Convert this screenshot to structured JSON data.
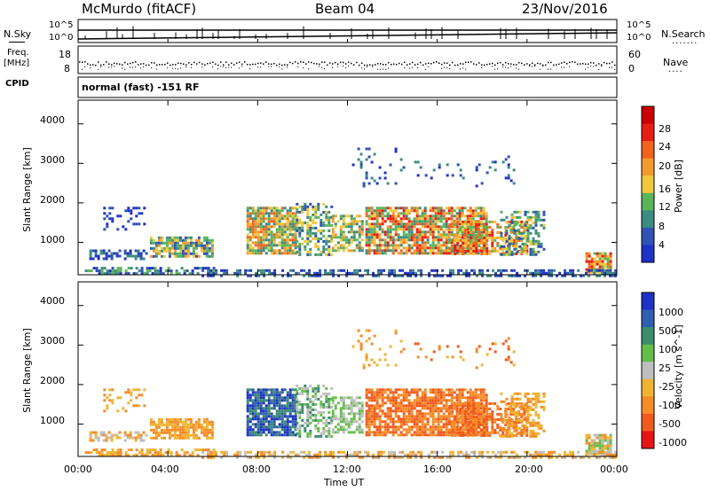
{
  "header": {
    "station": "McMurdo (fitACF)",
    "beam": "Beam 04",
    "date": "23/Nov/2016"
  },
  "top_panels": {
    "nsky_label": "N.Sky",
    "nsky_ticks": [
      "10^5",
      "10^0"
    ],
    "nsearch_label": "N.Search",
    "nsearch_ticks": [
      "10^5",
      "10^0"
    ],
    "freq_label_line1": "Freq.",
    "freq_label_line2": "[MHz]",
    "freq_ticks": [
      "18",
      "8"
    ],
    "nave_label": "Nave",
    "nave_ticks": [
      "60",
      "0"
    ],
    "cpid_label": "CPID",
    "cpid_text": "normal (fast) -151 RF"
  },
  "colors": {
    "power_scale": [
      "#1e32c8",
      "#2f52b4",
      "#3c8c82",
      "#5ab45a",
      "#f0c83c",
      "#f39a2e",
      "#f0641e",
      "#e61e14",
      "#cc0000"
    ],
    "velocity_scale": [
      "#1e32c8",
      "#2f5fb0",
      "#3c8c6e",
      "#64be4a",
      "#bebebe",
      "#f0b432",
      "#f58c28",
      "#f05a1e",
      "#e61414"
    ]
  },
  "chart_data": [
    {
      "type": "heatmap",
      "title": "",
      "xlabel": "Time UT",
      "ylabel": "Slant Range [km]",
      "x_tick_labels": [
        "00:00",
        "04:00",
        "08:00",
        "12:00",
        "16:00",
        "20:00",
        "00:00"
      ],
      "y_tick_labels": [
        "1000",
        "2000",
        "3000",
        "4000"
      ],
      "xlim_hours": [
        0,
        24
      ],
      "ylim_km": [
        180,
        4600
      ],
      "colorbar": {
        "label": "Power [dB]",
        "tick_labels": [
          "4",
          "8",
          "12",
          "16",
          "20",
          "24",
          "28"
        ],
        "range": [
          0,
          30
        ]
      }
    },
    {
      "type": "heatmap",
      "title": "",
      "xlabel": "Time UT",
      "ylabel": "Slant Range [km]",
      "x_tick_labels": [
        "00:00",
        "04:00",
        "08:00",
        "12:00",
        "16:00",
        "20:00",
        "00:00"
      ],
      "y_tick_labels": [
        "1000",
        "2000",
        "3000",
        "4000"
      ],
      "xlim_hours": [
        0,
        24
      ],
      "ylim_km": [
        180,
        4600
      ],
      "colorbar": {
        "label": "Velocity [m s^-1]",
        "tick_labels": [
          "1000",
          "500",
          "100",
          "25",
          "-25",
          "-100",
          "-500",
          "-1000"
        ]
      }
    }
  ]
}
